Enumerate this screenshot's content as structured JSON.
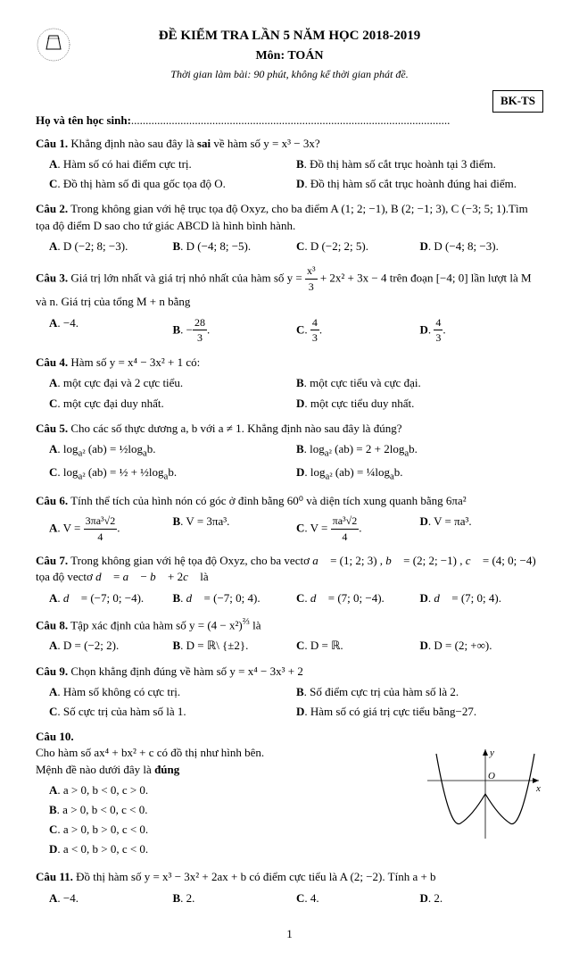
{
  "header": {
    "title": "ĐỀ KIỂM TRA LẦN 5 NĂM HỌC 2018-2019",
    "subject": "Môn: TOÁN",
    "time": "Thời gian làm bài: 90 phút, không kể thời gian phát đề.",
    "exam_code": "BK-TS"
  },
  "student_label": "Họ và tên học sinh:",
  "dots": "..............................................................................................................",
  "questions": [
    {
      "label": "Câu 1.",
      "text": "Khẳng định nào sau đây là <b>sai</b> về hàm số y = x³ − 3x?",
      "layout": "cols2",
      "opts": [
        "<b>A</b>. Hàm số có hai điểm cực trị.",
        "<b>B</b>. Đồ thị hàm số cắt trục hoành tại 3 điểm.",
        "<b>C</b>. Đồ thị hàm số đi qua gốc tọa độ O.",
        "<b>D</b>. Đồ thị hàm số cắt trục hoành đúng hai điểm."
      ]
    },
    {
      "label": "Câu 2.",
      "text": "Trong không gian với hệ trục tọa độ Oxyz, cho ba điểm A (1;  2;  −1), B (2;  −1;  3), C (−3;  5;  1).Tìm tọa độ điểm D sao cho tứ giác ABCD là hình bình hành.",
      "layout": "cols4",
      "opts": [
        "<b>A</b>. D (−2;  8;  −3).",
        "<b>B</b>. D (−4;  8;  −5).",
        "<b>C</b>. D (−2;  2;  5).",
        "<b>D</b>. D (−4;  8;  −3)."
      ]
    },
    {
      "label": "Câu 3.",
      "text": "Giá trị lớn nhất và giá trị nhỏ nhất của hàm số y = <span class=\"frac\"><span class=\"num\">x³</span><span class=\"den\">3</span></span> + 2x² + 3x − 4 trên đoạn [−4; 0] lần lượt là M và n. Giá trị của tổng M + n bằng",
      "layout": "cols4",
      "opts": [
        "<b>A</b>. −4.",
        "<b>B</b>. −<span class=\"frac\"><span class=\"num\">28</span><span class=\"den\">3</span></span>.",
        "<b>C</b>. <span class=\"frac\"><span class=\"num\">4</span><span class=\"den\">3</span></span>.",
        "<b>D</b>. <span class=\"frac\"><span class=\"num\">4</span><span class=\"den\">3</span></span>."
      ]
    },
    {
      "label": "Câu 4.",
      "text": "Hàm số y = x⁴ − 3x² + 1 có:",
      "layout": "cols2",
      "opts": [
        "<b>A</b>. một cực đại và 2 cực tiểu.",
        "<b>B</b>. một cực tiểu và cực đại.",
        "<b>C</b>. một cực đại duy nhất.",
        "<b>D</b>. một cực tiểu duy nhất."
      ]
    },
    {
      "label": "Câu 5.",
      "text": "Cho các số thực dương a, b với a ≠ 1. Khẳng định nào sau đây là đúng?",
      "layout": "cols2",
      "opts": [
        "<b>A</b>. log<sub>a²</sub> (ab) = ½log<sub>a</sub>b.",
        "<b>B</b>. log<sub>a²</sub> (ab) = 2 + 2log<sub>a</sub>b.",
        "<b>C</b>. log<sub>a²</sub> (ab) = ½ + ½log<sub>a</sub>b.",
        "<b>D</b>. log<sub>a²</sub> (ab) = ¼log<sub>a</sub>b."
      ]
    },
    {
      "label": "Câu 6.",
      "text": "Tính thể tích của hình nón có góc ở đỉnh bằng 60⁰ và diện tích xung quanh bằng 6πa²",
      "layout": "cols4",
      "opts": [
        "<b>A</b>. V = <span class=\"frac\"><span class=\"num\">3πa³√2</span><span class=\"den\">4</span></span>.",
        "<b>B</b>. V = 3πa³.",
        "<b>C</b>. V = <span class=\"frac\"><span class=\"num\">πa³√2</span><span class=\"den\">4</span></span>.",
        "<b>D</b>. V = πa³."
      ]
    },
    {
      "label": "Câu 7.",
      "text": "Trong không gian với hệ tọa độ Oxyz, cho ba vectơ <i>a⃗</i> = (1; 2; 3) , <i>b⃗</i> = (2; 2; −1) , <i>c⃗</i> = (4; 0; −4) tọa độ vectơ <i>d⃗</i> = <i>a⃗</i> − <i>b⃗</i> + 2<i>c⃗</i> là",
      "layout": "cols4",
      "opts": [
        "<b>A</b>. <i>d⃗</i> = (−7; 0; −4).",
        "<b>B</b>. <i>d⃗</i> = (−7; 0; 4).",
        "<b>C</b>. <i>d⃗</i> = (7; 0; −4).",
        "<b>D</b>. <i>d⃗</i> = (7; 0; 4)."
      ]
    },
    {
      "label": "Câu 8.",
      "text": "Tập xác định của hàm số y = (4 − x²)<sup>⅔</sup> là",
      "layout": "cols4",
      "opts": [
        "<b>A</b>. D = (−2; 2).",
        "<b>B</b>. D = ℝ\\ {±2}.",
        "<b>C</b>. D = ℝ.",
        "<b>D</b>. D = (2; +∞)."
      ]
    },
    {
      "label": "Câu 9.",
      "text": "Chọn khẳng định đúng về hàm số y = x⁴ − 3x³ + 2",
      "layout": "cols2",
      "opts": [
        "<b>A</b>. Hàm số không có cực trị.",
        "<b>B</b>. Số điểm cực trị của hàm số là 2.",
        "<b>C</b>. Số cực trị của hàm số là 1.",
        "<b>D</b>. Hàm số có giá trị cực tiểu bằng−27."
      ]
    }
  ],
  "q10": {
    "label": "Câu 10.",
    "line1": "Cho hàm số ax⁴ + bx² + c có đồ thị như hình bên.",
    "line2": "Mệnh đề nào dưới đây là <b>đúng</b>",
    "opts": [
      "<b>A</b>. a > 0,  b < 0,  c > 0.",
      "<b>B</b>. a > 0,  b < 0,  c < 0.",
      "<b>C</b>. a > 0,  b > 0,  c < 0.",
      "<b>D</b>. a < 0,  b > 0,  c < 0."
    ],
    "graph": {
      "width": 140,
      "height": 110,
      "x_label": "x",
      "y_label": "y",
      "o_label": "O",
      "curve_color": "#000000",
      "axis_color": "#000000"
    }
  },
  "q11": {
    "label": "Câu 11.",
    "text": "Đồ thị hàm số y = x³ − 3x² + 2ax + b có điểm cực tiểu là A (2; −2). Tính a + b",
    "layout": "cols4",
    "opts": [
      "<b>A</b>. −4.",
      "<b>B</b>. 2.",
      "<b>C</b>. 4.",
      "<b>D</b>. 2."
    ]
  },
  "page_number": "1"
}
